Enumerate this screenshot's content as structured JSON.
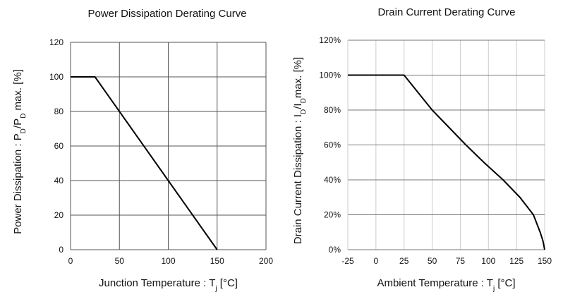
{
  "chart_data": [
    {
      "type": "line",
      "title": "Power Dissipation Derating Curve",
      "xlabel": "Junction Temperature : Tj [°C]",
      "xlabel_parts": {
        "main": "Junction Temperature : T",
        "sub": "j",
        "unit": " [°C]"
      },
      "ylabel": "Power Dissipation : PD/PD max. [%]",
      "ylabel_parts": {
        "a": "Power Dissipation : P",
        "sub1": "D",
        "b": "/P",
        "sub2": "D",
        "c": " max. [%]"
      },
      "xlim": [
        0,
        200
      ],
      "ylim": [
        0,
        120
      ],
      "xticks": [
        0,
        50,
        100,
        150,
        200
      ],
      "xtick_labels": [
        "0",
        "50",
        "100",
        "150",
        "200"
      ],
      "yticks": [
        0,
        20,
        40,
        60,
        80,
        100,
        120
      ],
      "ytick_labels": [
        "0",
        "20",
        "40",
        "60",
        "80",
        "100",
        "120"
      ],
      "grid": {
        "x": true,
        "y": true
      },
      "series": [
        {
          "x": [
            0,
            25,
            150
          ],
          "y": [
            100,
            100,
            0
          ],
          "color": "#000000"
        }
      ]
    },
    {
      "type": "line",
      "title": "Drain Current Derating Curve",
      "xlabel": "Ambient Temperature : Tj [°C]",
      "xlabel_parts": {
        "main": "Ambient Temperature : T",
        "sub": "j",
        "unit": " [°C]"
      },
      "ylabel": "Drain Current Dissipation : ID/IDmax. [%]",
      "ylabel_parts": {
        "a": "Drain Current Dissipation : I",
        "sub1": "D",
        "b": "/I",
        "sub2": "D",
        "c": "max. [%]"
      },
      "xlim": [
        -25,
        150
      ],
      "ylim": [
        0,
        120
      ],
      "xticks": [
        -25,
        0,
        25,
        50,
        75,
        100,
        125,
        150
      ],
      "xtick_labels": [
        "-25",
        "0",
        "25",
        "50",
        "75",
        "100",
        "125",
        "150"
      ],
      "yticks": [
        0,
        20,
        40,
        60,
        80,
        100,
        120
      ],
      "ytick_labels": [
        "0%",
        "20%",
        "40%",
        "60%",
        "80%",
        "100%",
        "120%"
      ],
      "grid": {
        "x": true,
        "y": true
      },
      "series": [
        {
          "x": [
            -25,
            25,
            37.5,
            50,
            65,
            80,
            96,
            113,
            128,
            140,
            146,
            148.5,
            150
          ],
          "y": [
            100,
            100,
            90,
            80,
            70,
            60,
            50,
            40,
            30,
            20,
            10,
            5,
            0
          ],
          "color": "#000000"
        }
      ]
    }
  ]
}
